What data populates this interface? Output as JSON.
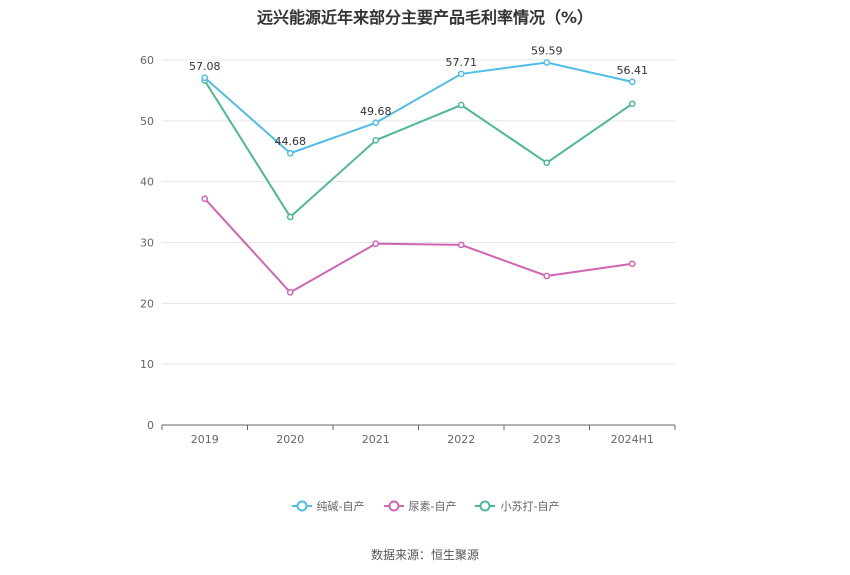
{
  "source_text": "数据来源：恒生聚源",
  "chart_data": {
    "type": "line",
    "title": "远兴能源近年来部分主要产品毛利率情况（%）",
    "categories": [
      "2019",
      "2020",
      "2021",
      "2022",
      "2023",
      "2024H1"
    ],
    "ylim": [
      0,
      60
    ],
    "yticks": [
      0,
      10,
      20,
      30,
      40,
      50,
      60
    ],
    "grid": true,
    "legend_position": "bottom",
    "series": [
      {
        "name": "纯碱-自产",
        "color": "#4fbde9",
        "values": [
          57.08,
          44.68,
          49.68,
          57.71,
          59.59,
          56.41
        ],
        "labels": [
          "57.08",
          "44.68",
          "49.68",
          "57.71",
          "59.59",
          "56.41"
        ]
      },
      {
        "name": "尿素-自产",
        "color": "#d065b3",
        "values": [
          37.2,
          21.8,
          29.8,
          29.6,
          24.5,
          26.5
        ]
      },
      {
        "name": "小苏打-自产",
        "color": "#4db899",
        "values": [
          56.6,
          34.2,
          46.8,
          52.6,
          43.1,
          52.8
        ]
      }
    ]
  }
}
